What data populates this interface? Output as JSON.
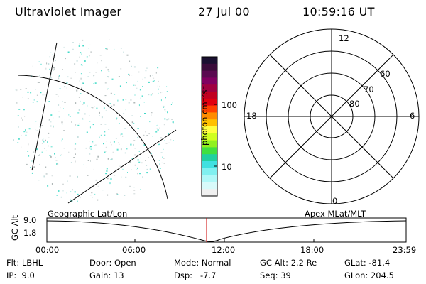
{
  "header": {
    "instrument": "Ultraviolet Imager",
    "date": "27 Jul 00",
    "time": "10:59:16 UT"
  },
  "colorbar": {
    "unit_label": "photon cm⁻²s⁻¹",
    "ticks": [
      "100",
      "10"
    ],
    "colors": [
      "#1a1030",
      "#3a0c3a",
      "#5a0a50",
      "#800060",
      "#a00040",
      "#c00020",
      "#e00010",
      "#ff4000",
      "#ff8c00",
      "#ffc000",
      "#ffff40",
      "#d0ff20",
      "#90f020",
      "#40e040",
      "#20d0a0",
      "#40e0e0",
      "#80f0f0",
      "#b0f8f8",
      "#d8fafa",
      "#f0f0f0"
    ]
  },
  "polar_plot": {
    "radial_labels": [
      "80",
      "70",
      "60"
    ],
    "clock_labels": {
      "top": "12",
      "left": "18",
      "right": "6",
      "bottom": "0"
    }
  },
  "orbit_panel": {
    "y_axis_label": "GC Alt",
    "y_ticks": [
      "9.0",
      "1.8"
    ],
    "left_label": "Geographic Lat/Lon",
    "right_label": "Apex MLat/MLT",
    "x_ticks": [
      "00:00",
      "06:00",
      "12:00",
      "18:00",
      "23:59"
    ]
  },
  "footer": {
    "row1": [
      "Flt: LBHL",
      "Door: Open",
      "Mode: Normal",
      "GC Alt: 2.2 Re",
      "GLat: -81.4"
    ],
    "row2": [
      "IP:  9.0",
      "Gain: 13",
      "Dsp:   -7.7",
      "Seq: 39",
      "GLon: 204.5"
    ]
  },
  "colors": {
    "marker": "#cc0000",
    "speckle": "#40d8c8"
  }
}
